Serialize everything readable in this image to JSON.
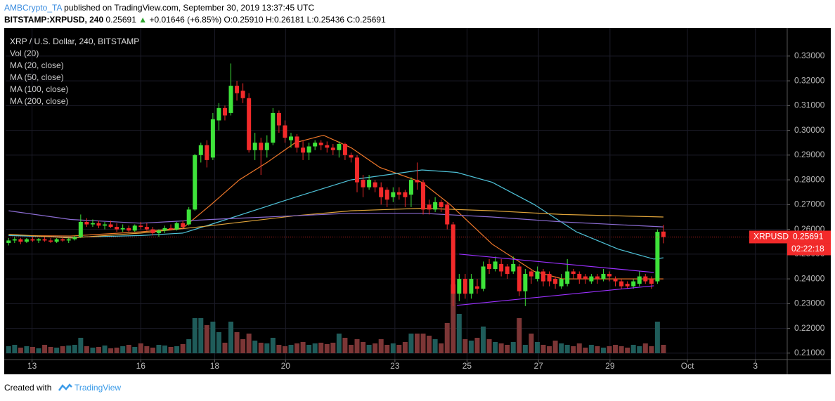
{
  "header": {
    "author": "AMBCrypto_TA",
    "published": "published on TradingView.com, September 30, 2019 13:37:45 UTC",
    "symbol": "BITSTAMP:XRPUSD, 240",
    "last": "0.25691",
    "change_arrow": "▲",
    "change": "+0.01646 (+6.85%)",
    "open": "O:0.25910",
    "high": "H:0.26181",
    "low": "L:0.25436",
    "close": "C:0.25691"
  },
  "chart_data": {
    "type": "candlestick",
    "title": "XRP / U.S. Dollar, 240, BITSTAMP",
    "volume_name": "Vol (20)",
    "up_color": "#3ee33a",
    "down_color": "#f22a2a",
    "volume_up_color": "#1f5c5a",
    "volume_down_color": "#7c3636",
    "candles": [
      [
        0.2545,
        0.2565,
        0.2535,
        0.2555
      ],
      [
        0.2555,
        0.257,
        0.2545,
        0.256
      ],
      [
        0.256,
        0.2565,
        0.254,
        0.255
      ],
      [
        0.255,
        0.2565,
        0.2545,
        0.256
      ],
      [
        0.256,
        0.257,
        0.255,
        0.2555
      ],
      [
        0.2555,
        0.2565,
        0.2545,
        0.256
      ],
      [
        0.256,
        0.257,
        0.255,
        0.2555
      ],
      [
        0.2555,
        0.2565,
        0.2545,
        0.255
      ],
      [
        0.255,
        0.2565,
        0.2545,
        0.256
      ],
      [
        0.256,
        0.257,
        0.255,
        0.2555
      ],
      [
        0.2555,
        0.2565,
        0.2545,
        0.256
      ],
      [
        0.256,
        0.2575,
        0.2555,
        0.257
      ],
      [
        0.257,
        0.266,
        0.2565,
        0.263
      ],
      [
        0.263,
        0.2645,
        0.261,
        0.262
      ],
      [
        0.262,
        0.264,
        0.261,
        0.2625
      ],
      [
        0.2625,
        0.2635,
        0.2605,
        0.2615
      ],
      [
        0.2615,
        0.263,
        0.26,
        0.262
      ],
      [
        0.262,
        0.2635,
        0.2605,
        0.261
      ],
      [
        0.261,
        0.2625,
        0.259,
        0.26
      ],
      [
        0.26,
        0.262,
        0.259,
        0.2605
      ],
      [
        0.2605,
        0.2615,
        0.259,
        0.2595
      ],
      [
        0.2595,
        0.262,
        0.259,
        0.2615
      ],
      [
        0.2615,
        0.263,
        0.26,
        0.261
      ],
      [
        0.261,
        0.2625,
        0.2595,
        0.26
      ],
      [
        0.26,
        0.261,
        0.2575,
        0.2585
      ],
      [
        0.2585,
        0.26,
        0.257,
        0.2595
      ],
      [
        0.2595,
        0.2615,
        0.2585,
        0.2605
      ],
      [
        0.2605,
        0.262,
        0.2595,
        0.26
      ],
      [
        0.26,
        0.263,
        0.2595,
        0.2625
      ],
      [
        0.2625,
        0.2635,
        0.26,
        0.261
      ],
      [
        0.262,
        0.269,
        0.2615,
        0.268
      ],
      [
        0.268,
        0.2905,
        0.2675,
        0.29
      ],
      [
        0.29,
        0.295,
        0.287,
        0.294
      ],
      [
        0.294,
        0.296,
        0.285,
        0.288
      ],
      [
        0.289,
        0.307,
        0.288,
        0.3045
      ],
      [
        0.304,
        0.311,
        0.3,
        0.309
      ],
      [
        0.309,
        0.31,
        0.304,
        0.306
      ],
      [
        0.307,
        0.327,
        0.306,
        0.318
      ],
      [
        0.318,
        0.32,
        0.312,
        0.315
      ],
      [
        0.316,
        0.319,
        0.311,
        0.313
      ],
      [
        0.313,
        0.315,
        0.291,
        0.292
      ],
      [
        0.292,
        0.299,
        0.288,
        0.295
      ],
      [
        0.295,
        0.297,
        0.282,
        0.292
      ],
      [
        0.292,
        0.298,
        0.289,
        0.295
      ],
      [
        0.295,
        0.309,
        0.294,
        0.307
      ],
      [
        0.307,
        0.308,
        0.299,
        0.302
      ],
      [
        0.302,
        0.304,
        0.295,
        0.297
      ],
      [
        0.296,
        0.299,
        0.293,
        0.2975
      ],
      [
        0.2975,
        0.2985,
        0.291,
        0.293
      ],
      [
        0.293,
        0.296,
        0.288,
        0.291
      ],
      [
        0.291,
        0.295,
        0.288,
        0.2935
      ],
      [
        0.2935,
        0.296,
        0.292,
        0.295
      ],
      [
        0.295,
        0.296,
        0.292,
        0.294
      ],
      [
        0.294,
        0.2955,
        0.291,
        0.293
      ],
      [
        0.293,
        0.2945,
        0.29,
        0.292
      ],
      [
        0.292,
        0.2955,
        0.289,
        0.2945
      ],
      [
        0.2945,
        0.295,
        0.288,
        0.29
      ],
      [
        0.29,
        0.291,
        0.287,
        0.289
      ],
      [
        0.289,
        0.29,
        0.275,
        0.279
      ],
      [
        0.28,
        0.282,
        0.273,
        0.277
      ],
      [
        0.277,
        0.282,
        0.276,
        0.28
      ],
      [
        0.279,
        0.28,
        0.275,
        0.277
      ],
      [
        0.277,
        0.279,
        0.27,
        0.273
      ],
      [
        0.276,
        0.277,
        0.269,
        0.272
      ],
      [
        0.273,
        0.277,
        0.271,
        0.275
      ],
      [
        0.275,
        0.277,
        0.272,
        0.274
      ],
      [
        0.275,
        0.276,
        0.269,
        0.273
      ],
      [
        0.274,
        0.281,
        0.269,
        0.28
      ],
      [
        0.28,
        0.287,
        0.276,
        0.279
      ],
      [
        0.279,
        0.28,
        0.266,
        0.268
      ],
      [
        0.27,
        0.272,
        0.266,
        0.268
      ],
      [
        0.268,
        0.273,
        0.267,
        0.271
      ],
      [
        0.271,
        0.272,
        0.267,
        0.269
      ],
      [
        0.27,
        0.271,
        0.26,
        0.262
      ],
      [
        0.262,
        0.263,
        0.229,
        0.234
      ],
      [
        0.234,
        0.242,
        0.231,
        0.24
      ],
      [
        0.24,
        0.242,
        0.232,
        0.234
      ],
      [
        0.234,
        0.242,
        0.232,
        0.24
      ],
      [
        0.237,
        0.24,
        0.234,
        0.236
      ],
      [
        0.236,
        0.247,
        0.235,
        0.245
      ],
      [
        0.246,
        0.248,
        0.242,
        0.244
      ],
      [
        0.244,
        0.249,
        0.243,
        0.247
      ],
      [
        0.246,
        0.248,
        0.241,
        0.243
      ],
      [
        0.245,
        0.246,
        0.24,
        0.242
      ],
      [
        0.243,
        0.249,
        0.242,
        0.246
      ],
      [
        0.245,
        0.246,
        0.233,
        0.235
      ],
      [
        0.235,
        0.244,
        0.229,
        0.242
      ],
      [
        0.243,
        0.244,
        0.238,
        0.241
      ],
      [
        0.24,
        0.245,
        0.239,
        0.243
      ],
      [
        0.243,
        0.244,
        0.237,
        0.239
      ],
      [
        0.242,
        0.243,
        0.237,
        0.239
      ],
      [
        0.24,
        0.241,
        0.236,
        0.238
      ],
      [
        0.237,
        0.242,
        0.236,
        0.24
      ],
      [
        0.238,
        0.248,
        0.237,
        0.243
      ],
      [
        0.243,
        0.244,
        0.24,
        0.242
      ],
      [
        0.242,
        0.243,
        0.238,
        0.24
      ],
      [
        0.241,
        0.242,
        0.238,
        0.24
      ],
      [
        0.239,
        0.242,
        0.238,
        0.241
      ],
      [
        0.241,
        0.242,
        0.238,
        0.24
      ],
      [
        0.24,
        0.244,
        0.239,
        0.242
      ],
      [
        0.242,
        0.243,
        0.239,
        0.241
      ],
      [
        0.24,
        0.241,
        0.237,
        0.239
      ],
      [
        0.239,
        0.24,
        0.236,
        0.237
      ],
      [
        0.238,
        0.239,
        0.236,
        0.237
      ],
      [
        0.237,
        0.24,
        0.236,
        0.239
      ],
      [
        0.238,
        0.243,
        0.237,
        0.241
      ],
      [
        0.241,
        0.242,
        0.238,
        0.239
      ],
      [
        0.24,
        0.241,
        0.236,
        0.238
      ],
      [
        0.239,
        0.26,
        0.238,
        0.259
      ],
      [
        0.2591,
        0.26181,
        0.25436,
        0.25691
      ]
    ],
    "volume": [
      10,
      12,
      8,
      10,
      9,
      7,
      12,
      9,
      8,
      10,
      11,
      12,
      22,
      10,
      8,
      9,
      11,
      7,
      8,
      10,
      12,
      9,
      14,
      10,
      8,
      12,
      11,
      9,
      10,
      13,
      20,
      50,
      50,
      40,
      45,
      30,
      15,
      45,
      30,
      20,
      28,
      18,
      15,
      14,
      22,
      12,
      10,
      12,
      14,
      16,
      12,
      14,
      15,
      13,
      15,
      28,
      22,
      12,
      20,
      16,
      12,
      14,
      20,
      12,
      14,
      12,
      16,
      28,
      28,
      28,
      25,
      20,
      14,
      43,
      98,
      56,
      20,
      18,
      22,
      38,
      20,
      16,
      14,
      12,
      16,
      50,
      12,
      28,
      16,
      12,
      10,
      18,
      14,
      12,
      10,
      14,
      8,
      12,
      10,
      8,
      10,
      12,
      10,
      8,
      12,
      10,
      14,
      10,
      45,
      12
    ],
    "vlim": [
      0,
      120
    ],
    "series": [
      {
        "name": "MA (20, close)",
        "color": "#f0782a",
        "x": [
          0,
          10.3,
          22,
          29,
          33.7,
          38.4,
          43,
          47.7,
          52.4,
          57,
          61.8,
          68.8,
          73.5,
          80.5,
          87.5,
          92.2,
          98,
          109
        ],
        "values": [
          0.2575,
          0.2573,
          0.259,
          0.2605,
          0.27,
          0.28,
          0.287,
          0.295,
          0.298,
          0.293,
          0.285,
          0.279,
          0.27,
          0.254,
          0.243,
          0.24,
          0.24,
          0.24
        ]
      },
      {
        "name": "MA (50, close)",
        "color": "#4fc3d9",
        "x": [
          0,
          10.3,
          22,
          29,
          33.7,
          47.7,
          57,
          68.8,
          74.6,
          80.5,
          87.5,
          94.5,
          101.5,
          107.4,
          109
        ],
        "values": [
          0.2575,
          0.2568,
          0.2575,
          0.2585,
          0.262,
          0.273,
          0.28,
          0.284,
          0.283,
          0.279,
          0.27,
          0.259,
          0.252,
          0.248,
          0.2485
        ]
      },
      {
        "name": "MA (100, close)",
        "color": "#e0a43a",
        "x": [
          0,
          10.3,
          22,
          33.7,
          47.7,
          57,
          68.8,
          80.5,
          92.2,
          109
        ],
        "values": [
          0.258,
          0.2565,
          0.2585,
          0.2615,
          0.2655,
          0.2675,
          0.2685,
          0.2675,
          0.266,
          0.265
        ]
      },
      {
        "name": "MA (200, close)",
        "color": "#8a6bd1",
        "x": [
          0,
          10.3,
          22,
          33.7,
          47.7,
          57,
          68.8,
          80.5,
          92.2,
          109
        ],
        "values": [
          0.2675,
          0.264,
          0.2625,
          0.264,
          0.2655,
          0.2665,
          0.2665,
          0.265,
          0.263,
          0.261
        ]
      }
    ],
    "trendlines": [
      {
        "color": "#9b30ff",
        "x": [
          75,
          107.4
        ],
        "values": [
          0.25,
          0.2426
        ]
      },
      {
        "color": "#9b30ff",
        "x": [
          74.6,
          107.4
        ],
        "values": [
          0.2293,
          0.2372
        ]
      }
    ],
    "xlim": [
      -0.5,
      129.6
    ],
    "xticks": [
      {
        "value": 3.9,
        "label": "13"
      },
      {
        "value": 22,
        "label": "16"
      },
      {
        "value": 34.3,
        "label": "18"
      },
      {
        "value": 46.1,
        "label": "20"
      },
      {
        "value": 64.3,
        "label": "23"
      },
      {
        "value": 76.3,
        "label": "25"
      },
      {
        "value": 88.2,
        "label": "27"
      },
      {
        "value": 100.1,
        "label": "29"
      },
      {
        "value": 113,
        "label": "Oct"
      },
      {
        "value": 124.3,
        "label": "3"
      }
    ],
    "ylim": [
      0.2074,
      0.3413
    ],
    "yticks": [
      {
        "value": 0.21,
        "label": "0.21000"
      },
      {
        "value": 0.22,
        "label": "0.22000"
      },
      {
        "value": 0.23,
        "label": "0.23000"
      },
      {
        "value": 0.24,
        "label": "0.24000"
      },
      {
        "value": 0.25,
        "label": "0.25000"
      },
      {
        "value": 0.26,
        "label": "0.26000"
      },
      {
        "value": 0.27,
        "label": "0.27000"
      },
      {
        "value": 0.28,
        "label": "0.28000"
      },
      {
        "value": 0.29,
        "label": "0.29000"
      },
      {
        "value": 0.3,
        "label": "0.30000"
      },
      {
        "value": 0.31,
        "label": "0.31000"
      },
      {
        "value": 0.32,
        "label": "0.32000"
      },
      {
        "value": 0.33,
        "label": "0.33000"
      }
    ],
    "grid": true,
    "last_price": {
      "value": 0.25691,
      "label": "0.25691"
    },
    "price_tag": "XRPUSD",
    "countdown": "02:22:18"
  },
  "footer": {
    "text": "Created with",
    "brand": "TradingView"
  }
}
